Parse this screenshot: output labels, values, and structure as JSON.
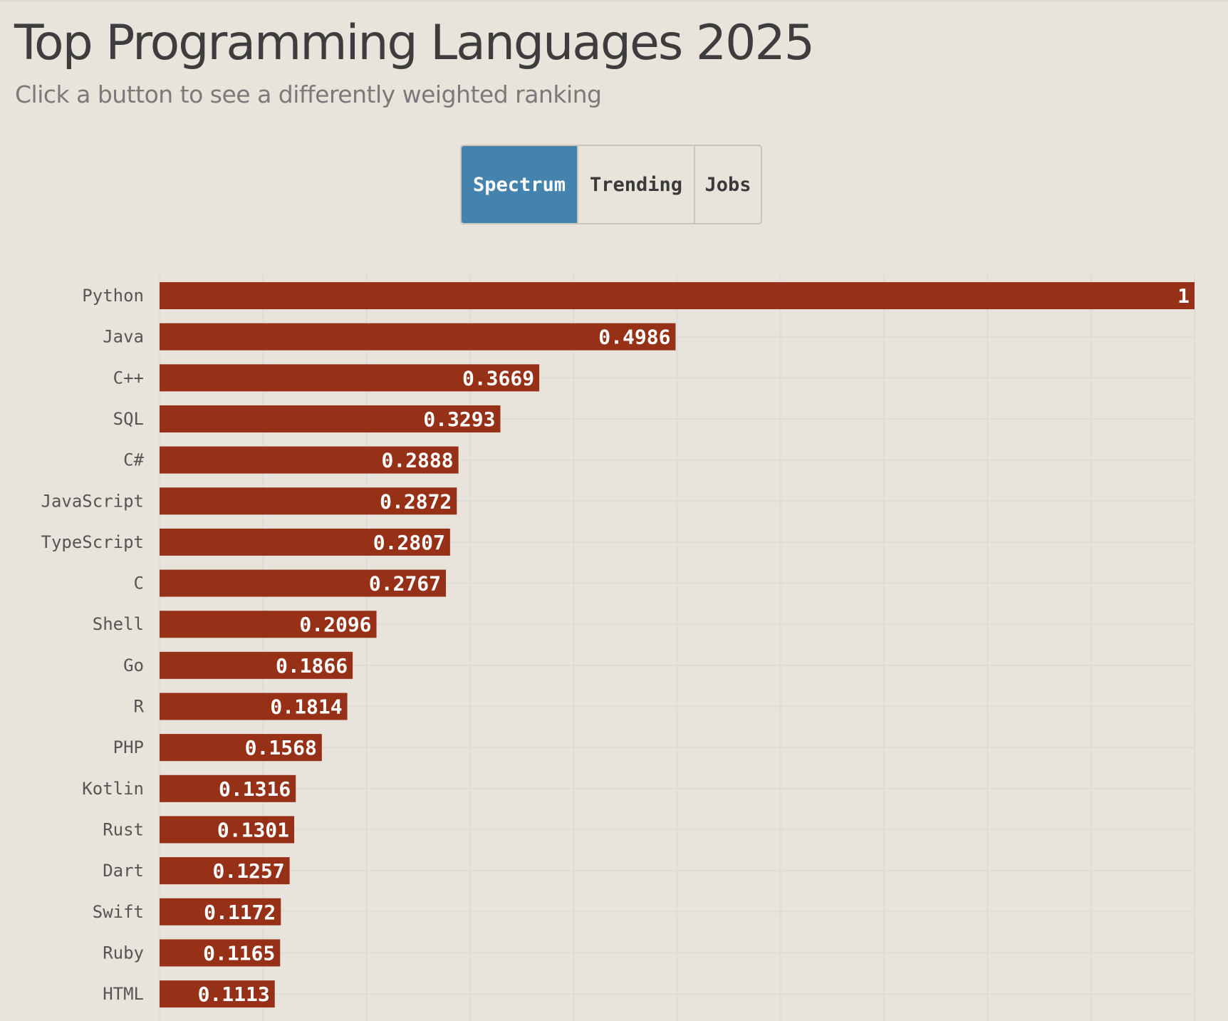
{
  "header": {
    "title": "Top Programming Languages 2025",
    "subtitle": "Click a button to see a differently weighted ranking"
  },
  "toolbar": {
    "buttons": [
      {
        "label": "Spectrum",
        "active": true
      },
      {
        "label": "Trending",
        "active": false
      },
      {
        "label": "Jobs",
        "active": false
      }
    ]
  },
  "colors": {
    "bar": "#963117",
    "active_button": "#4483ae",
    "background": "#e8e3db",
    "grid": "#dcdcd8"
  },
  "chart_data": {
    "type": "bar",
    "orientation": "horizontal",
    "categories": [
      "Python",
      "Java",
      "C++",
      "SQL",
      "C#",
      "JavaScript",
      "TypeScript",
      "C",
      "Shell",
      "Go",
      "R",
      "PHP",
      "Kotlin",
      "Rust",
      "Dart",
      "Swift",
      "Ruby",
      "HTML"
    ],
    "values": [
      1,
      0.4986,
      0.3669,
      0.3293,
      0.2888,
      0.2872,
      0.2807,
      0.2767,
      0.2096,
      0.1866,
      0.1814,
      0.1568,
      0.1316,
      0.1301,
      0.1257,
      0.1172,
      0.1165,
      0.1113
    ],
    "value_labels": [
      "1",
      "0.4986",
      "0.3669",
      "0.3293",
      "0.2888",
      "0.2872",
      "0.2807",
      "0.2767",
      "0.2096",
      "0.1866",
      "0.1814",
      "0.1568",
      "0.1316",
      "0.1301",
      "0.1257",
      "0.1172",
      "0.1165",
      "0.1113"
    ],
    "xlim": [
      0,
      1
    ],
    "x_grid_step": 0.1,
    "grid": true,
    "legend": "none",
    "data_labels": "inside-end"
  }
}
